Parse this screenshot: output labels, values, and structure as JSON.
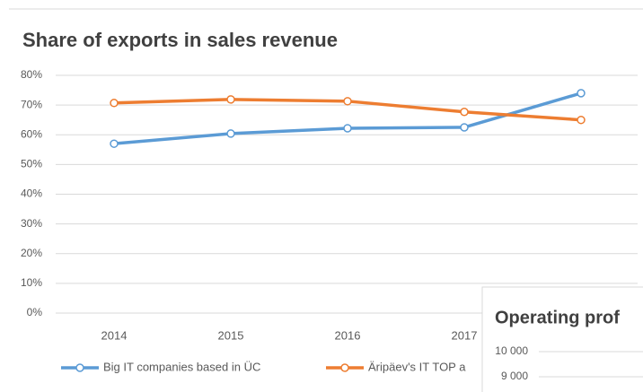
{
  "chart_data": [
    {
      "type": "line",
      "title": "Share of exports in sales revenue",
      "categories": [
        "2014",
        "2015",
        "2016",
        "2017",
        null
      ],
      "series": [
        {
          "name": "Big IT companies based in ÜC",
          "color": "#5b9bd5",
          "values": [
            57,
            60.4,
            62.2,
            62.5,
            74
          ]
        },
        {
          "name": "Äripäev's IT TOP a",
          "color": "#ed7d31",
          "values": [
            70.7,
            71.9,
            71.3,
            67.7,
            65
          ]
        }
      ],
      "ylim": [
        0,
        80
      ],
      "yticks": [
        {
          "value": 0,
          "label": "0%"
        },
        {
          "value": 10,
          "label": "10%"
        },
        {
          "value": 20,
          "label": "20%"
        },
        {
          "value": 30,
          "label": "30%"
        },
        {
          "value": 40,
          "label": "40%"
        },
        {
          "value": 50,
          "label": "50%"
        },
        {
          "value": 60,
          "label": "60%"
        },
        {
          "value": 70,
          "label": "70%"
        },
        {
          "value": 80,
          "label": "80%"
        }
      ],
      "grid": true,
      "legend": "bottom"
    },
    {
      "type": "line",
      "title": "Operating prof",
      "ylim": [
        9000,
        10000
      ],
      "yticks": [
        {
          "value": 9000,
          "label": "9 000"
        },
        {
          "value": 10000,
          "label": "10 000"
        }
      ],
      "grid": true
    }
  ]
}
